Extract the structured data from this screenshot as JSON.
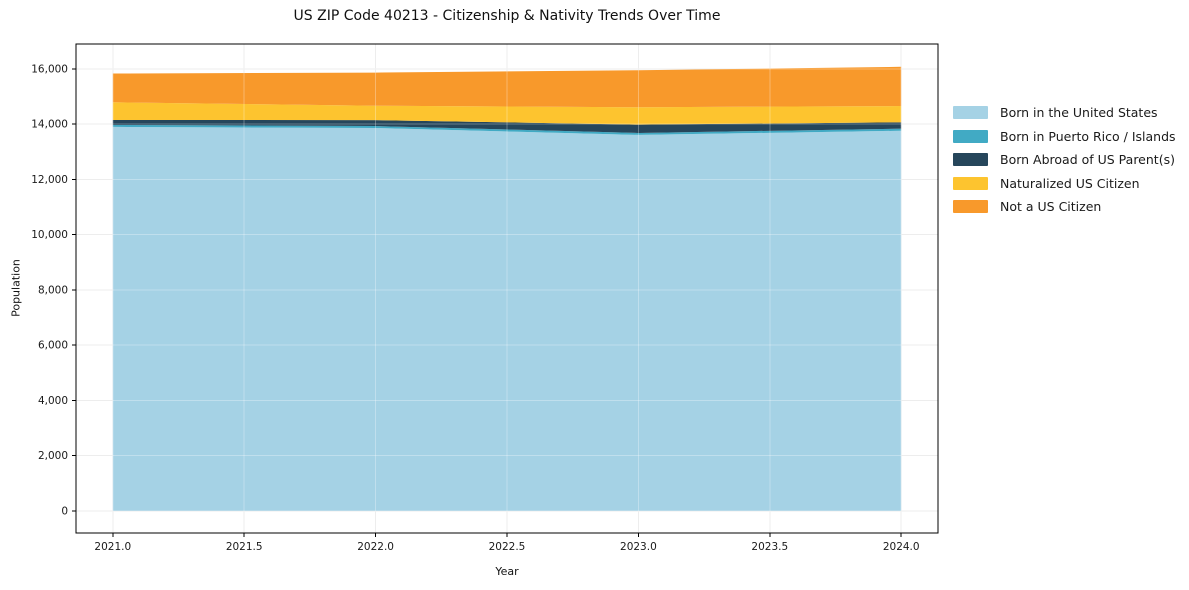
{
  "chart_data": {
    "type": "area",
    "stacked": true,
    "title": "US ZIP Code 40213 - Citizenship & Nativity Trends Over Time",
    "xlabel": "Year",
    "ylabel": "Population",
    "x": [
      2021,
      2022,
      2023,
      2024
    ],
    "series": [
      {
        "name": "Born in the United States",
        "color": "#A5D2E5",
        "values": [
          13900,
          13860,
          13610,
          13760
        ]
      },
      {
        "name": "Born in Puerto Rico / Islands",
        "color": "#41AAC4",
        "values": [
          70,
          70,
          70,
          75
        ]
      },
      {
        "name": "Born Abroad of US Parent(s)",
        "color": "#26465B",
        "values": [
          180,
          215,
          300,
          230
        ]
      },
      {
        "name": "Naturalized US Citizen",
        "color": "#FDC42F",
        "values": [
          640,
          520,
          630,
          590
        ]
      },
      {
        "name": "Not a US Citizen",
        "color": "#F8992B",
        "values": [
          1040,
          1200,
          1340,
          1420
        ]
      }
    ],
    "totals": [
      15830,
      15865,
      15950,
      16075
    ],
    "xlim": [
      2020.86,
      2024.14
    ],
    "ylim": [
      -800,
      16900
    ],
    "xticks": [
      2021.0,
      2021.5,
      2022.0,
      2022.5,
      2023.0,
      2023.5,
      2024.0
    ],
    "xtick_labels": [
      "2021.0",
      "2021.5",
      "2022.0",
      "2022.5",
      "2023.0",
      "2023.5",
      "2024.0"
    ],
    "yticks": [
      0,
      2000,
      4000,
      6000,
      8000,
      10000,
      12000,
      14000,
      16000
    ],
    "ytick_labels": [
      "0",
      "2,000",
      "4,000",
      "6,000",
      "8,000",
      "10,000",
      "12,000",
      "14,000",
      "16,000"
    ],
    "grid": true,
    "grid_color": "#e6e6e6",
    "background": "#ffffff",
    "spine_color": "#000000",
    "legend_position": "right"
  }
}
